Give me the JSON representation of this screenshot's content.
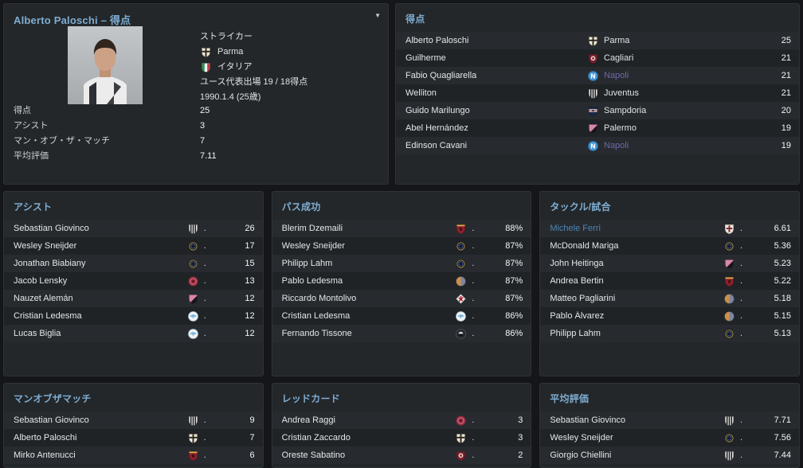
{
  "colors": {
    "accent": "#7fadd2",
    "purple": "#6b6aa5",
    "blue": "#4d86b4"
  },
  "icons": {
    "panel_menu": "▼"
  },
  "profile": {
    "title": "Alberto Paloschi – 得点",
    "position": "ストライカー",
    "club": {
      "name": "Parma",
      "badge": "parma"
    },
    "nation": {
      "name": "イタリア",
      "badge": "italy"
    },
    "youth_line": "ユース代表出場 19 / 18得点",
    "birth_line": "1990.1.4 (25歳)",
    "stats": [
      {
        "label": "得点",
        "value": "25"
      },
      {
        "label": "アシスト",
        "value": "3"
      },
      {
        "label": "マン・オブ・ザ・マッチ",
        "value": "7"
      },
      {
        "label": "平均評価",
        "value": "7.11"
      }
    ]
  },
  "leaderboards": [
    {
      "id": "goals",
      "title": "得点",
      "rows": [
        {
          "player": "Alberto Paloschi",
          "badge": "parma",
          "club": "Parma",
          "value": "25"
        },
        {
          "player": "Guilherme",
          "badge": "cagliari",
          "club": "Cagliari",
          "value": "21"
        },
        {
          "player": "Fabio Quagliarella",
          "badge": "napoli",
          "club": "Napoli",
          "club_color": "purple",
          "value": "21"
        },
        {
          "player": "Welliton",
          "badge": "juventus",
          "club": "Juventus",
          "value": "21"
        },
        {
          "player": "Guido Marilungo",
          "badge": "sampdoria",
          "club": "Sampdoria",
          "value": "20"
        },
        {
          "player": "Abel Hernández",
          "badge": "palermo",
          "club": "Palermo",
          "value": "19"
        },
        {
          "player": "Edinson Cavani",
          "badge": "napoli",
          "club": "Napoli",
          "club_color": "purple",
          "value": "19"
        }
      ]
    },
    {
      "id": "assists",
      "title": "アシスト",
      "rows": [
        {
          "player": "Sebastian Giovinco",
          "badge": "juventus",
          "club": ".",
          "value": "26"
        },
        {
          "player": "Wesley Sneijder",
          "badge": "inter",
          "club": ".",
          "value": "17"
        },
        {
          "player": "Jonathan Biabiany",
          "badge": "inter",
          "club": ".",
          "value": "15"
        },
        {
          "player": "Jacob Lensky",
          "badge": "redring",
          "club": ".",
          "value": "13"
        },
        {
          "player": "Nauzet Alemán",
          "badge": "palermo",
          "club": ".",
          "value": "12"
        },
        {
          "player": "Cristian Ledesma",
          "badge": "lazio",
          "club": ".",
          "value": "12"
        },
        {
          "player": "Lucas Biglia",
          "badge": "lazio",
          "club": ".",
          "value": "12"
        }
      ]
    },
    {
      "id": "pass-completion",
      "title": "パス成功",
      "rows": [
        {
          "player": "Blerim Dzemaili",
          "badge": "torino",
          "club": ".",
          "value": "88%"
        },
        {
          "player": "Wesley Sneijder",
          "badge": "inter",
          "club": ".",
          "value": "87%"
        },
        {
          "player": "Philipp Lahm",
          "badge": "inter",
          "club": ".",
          "value": "87%"
        },
        {
          "player": "Pablo Ledesma",
          "badge": "catania",
          "club": ".",
          "value": "87%"
        },
        {
          "player": "Riccardo Montolivo",
          "badge": "fiorentina",
          "club": ".",
          "value": "87%"
        },
        {
          "player": "Cristian Ledesma",
          "badge": "lazio",
          "club": ".",
          "value": "86%"
        },
        {
          "player": "Fernando Tissone",
          "badge": "darkround",
          "club": ".",
          "value": "86%"
        }
      ]
    },
    {
      "id": "tackles-per-match",
      "title": "タックル/試合",
      "rows": [
        {
          "player": "Michele Ferri",
          "player_color": "blue",
          "badge": "crossshield",
          "club": ".",
          "value": "6.61"
        },
        {
          "player": "McDonald Mariga",
          "badge": "inter",
          "club": ".",
          "value": "5.36"
        },
        {
          "player": "John Heitinga",
          "badge": "palermo",
          "club": ".",
          "value": "5.23"
        },
        {
          "player": "Andrea Bertin",
          "badge": "torino",
          "club": ".",
          "value": "5.22"
        },
        {
          "player": "Matteo Pagliarini",
          "badge": "catania",
          "club": ".",
          "value": "5.18"
        },
        {
          "player": "Pablo Álvarez",
          "badge": "catania",
          "club": ".",
          "value": "5.15"
        },
        {
          "player": "Philipp Lahm",
          "badge": "inter",
          "club": ".",
          "value": "5.13"
        }
      ]
    },
    {
      "id": "motm",
      "title": "マンオブザマッチ",
      "rows": [
        {
          "player": "Sebastian Giovinco",
          "badge": "juventus",
          "club": ".",
          "value": "9"
        },
        {
          "player": "Alberto Paloschi",
          "badge": "parma",
          "club": ".",
          "value": "7"
        },
        {
          "player": "Mirko Antenucci",
          "badge": "torino",
          "club": ".",
          "value": "6"
        }
      ]
    },
    {
      "id": "red-cards",
      "title": "レッドカード",
      "rows": [
        {
          "player": "Andrea Raggi",
          "badge": "redring",
          "club": ".",
          "value": "3"
        },
        {
          "player": "Cristian Zaccardo",
          "badge": "parma",
          "club": ".",
          "value": "3"
        },
        {
          "player": "Oreste Sabatino",
          "badge": "cagliari",
          "club": ".",
          "value": "2"
        }
      ]
    },
    {
      "id": "avg-rating",
      "title": "平均評価",
      "rows": [
        {
          "player": "Sebastian Giovinco",
          "badge": "juventus",
          "club": ".",
          "value": "7.71"
        },
        {
          "player": "Wesley Sneijder",
          "badge": "inter",
          "club": ".",
          "value": "7.56"
        },
        {
          "player": "Giorgio Chiellini",
          "badge": "juventus",
          "club": ".",
          "value": "7.44"
        }
      ]
    }
  ]
}
